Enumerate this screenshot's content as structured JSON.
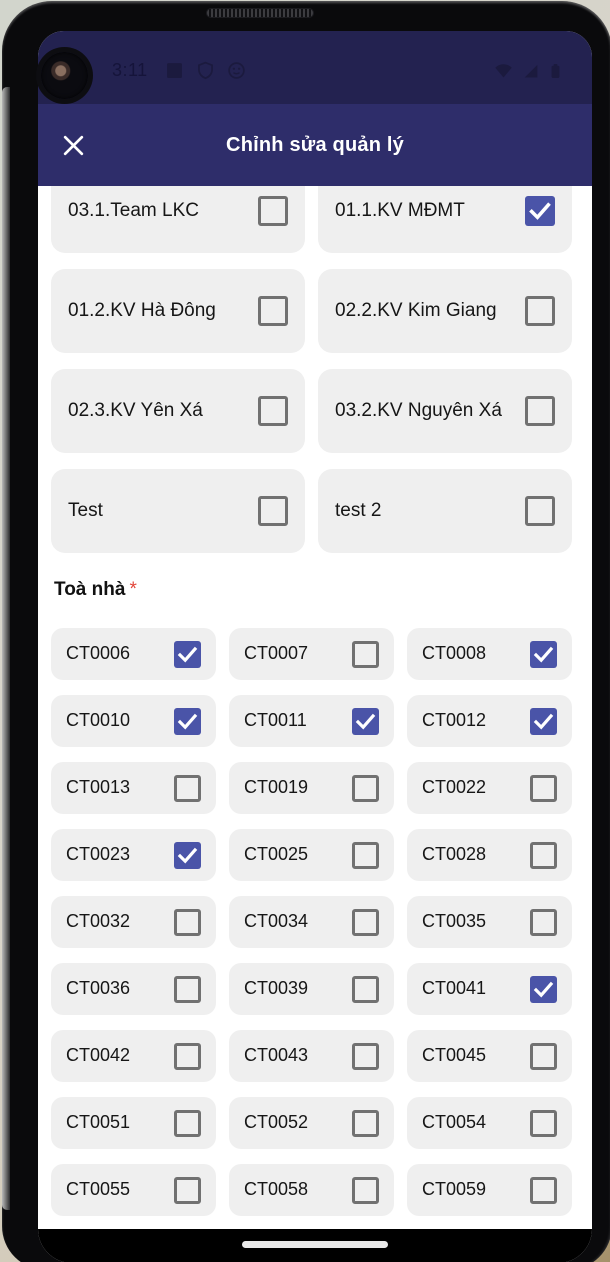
{
  "status_bar": {
    "time": "3:11",
    "left_icons": [
      "notification-square-icon",
      "shield-icon",
      "browser-circle-icon"
    ],
    "right_icons": [
      "wifi-icon",
      "cell-signal-icon",
      "battery-icon"
    ]
  },
  "app_bar": {
    "title": "Chỉnh sửa quản lý",
    "close_icon": "close-x-icon"
  },
  "areas": {
    "items": [
      {
        "label": "03.1.Team LKC",
        "checked": false
      },
      {
        "label": "01.1.KV MĐMT",
        "checked": true
      },
      {
        "label": "01.2.KV Hà Đông",
        "checked": false
      },
      {
        "label": "02.2.KV Kim Giang",
        "checked": false
      },
      {
        "label": "02.3.KV Yên Xá",
        "checked": false
      },
      {
        "label": "03.2.KV Nguyên Xá",
        "checked": false
      },
      {
        "label": "Test",
        "checked": false
      },
      {
        "label": "test 2",
        "checked": false
      }
    ]
  },
  "buildings": {
    "label": "Toà nhà",
    "required_mark": "*",
    "items": [
      {
        "label": "CT0006",
        "checked": true
      },
      {
        "label": "CT0007",
        "checked": false
      },
      {
        "label": "CT0008",
        "checked": true
      },
      {
        "label": "CT0010",
        "checked": true
      },
      {
        "label": "CT0011",
        "checked": true
      },
      {
        "label": "CT0012",
        "checked": true
      },
      {
        "label": "CT0013",
        "checked": false
      },
      {
        "label": "CT0019",
        "checked": false
      },
      {
        "label": "CT0022",
        "checked": false
      },
      {
        "label": "CT0023",
        "checked": true
      },
      {
        "label": "CT0025",
        "checked": false
      },
      {
        "label": "CT0028",
        "checked": false
      },
      {
        "label": "CT0032",
        "checked": false
      },
      {
        "label": "CT0034",
        "checked": false
      },
      {
        "label": "CT0035",
        "checked": false
      },
      {
        "label": "CT0036",
        "checked": false
      },
      {
        "label": "CT0039",
        "checked": false
      },
      {
        "label": "CT0041",
        "checked": true
      },
      {
        "label": "CT0042",
        "checked": false
      },
      {
        "label": "CT0043",
        "checked": false
      },
      {
        "label": "CT0045",
        "checked": false
      },
      {
        "label": "CT0051",
        "checked": false
      },
      {
        "label": "CT0052",
        "checked": false
      },
      {
        "label": "CT0054",
        "checked": false
      },
      {
        "label": "CT0055",
        "checked": false
      },
      {
        "label": "CT0058",
        "checked": false
      },
      {
        "label": "CT0059",
        "checked": false
      }
    ],
    "partial_next_row_cards": 3
  },
  "colors": {
    "status_bar_bg": "#232250",
    "app_bar_bg": "#2e2d6a",
    "checkbox_checked": "#4a54a8",
    "card_bg": "#efefef",
    "required_mark": "#e2463a",
    "nav_bar_bg": "#000000"
  }
}
